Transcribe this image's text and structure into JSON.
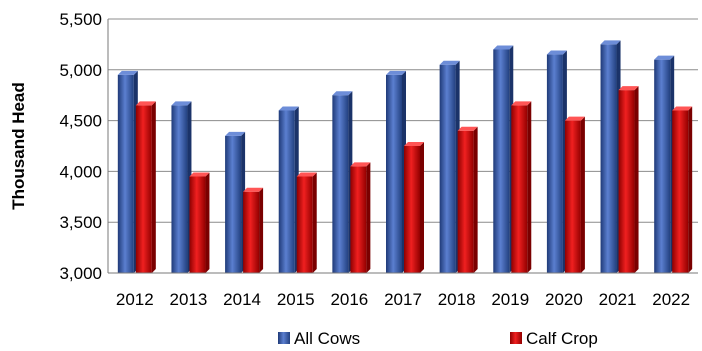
{
  "chart_data": {
    "type": "bar",
    "categories": [
      "2012",
      "2013",
      "2014",
      "2015",
      "2016",
      "2017",
      "2018",
      "2019",
      "2020",
      "2021",
      "2022"
    ],
    "series": [
      {
        "name": "All Cows",
        "values": [
          4950,
          4650,
          4350,
          4600,
          4750,
          4950,
          5050,
          5200,
          5150,
          5250,
          5100
        ],
        "color": "#3a5aa8"
      },
      {
        "name": "Calf Crop",
        "values": [
          4650,
          3950,
          3800,
          3950,
          4050,
          4250,
          4400,
          4650,
          4500,
          4800,
          4600
        ],
        "color": "#d81818"
      }
    ],
    "ylabel": "Thousand Head",
    "ylim": [
      3000,
      5500
    ],
    "yticks": [
      "3,000",
      "3,500",
      "4,000",
      "4,500",
      "5,000",
      "5,500"
    ],
    "ytick_values": [
      3000,
      3500,
      4000,
      4500,
      5000,
      5500
    ],
    "grid": true,
    "legend_position": "bottom"
  }
}
